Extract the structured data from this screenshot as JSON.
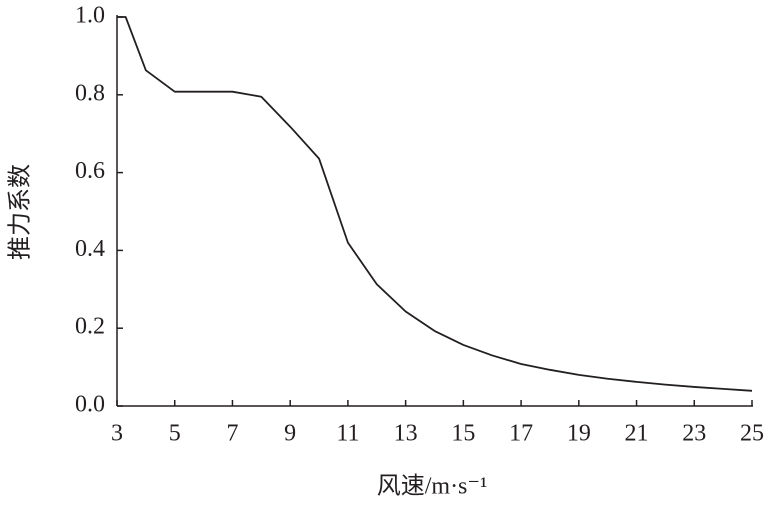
{
  "chart_data": {
    "type": "line",
    "x_label": "风速/m·s⁻¹",
    "y_label": "推力系数",
    "x": [
      3,
      3.3,
      4,
      5,
      7,
      8,
      9,
      10,
      11,
      12,
      13,
      14,
      15,
      16,
      17,
      18,
      19,
      20,
      21,
      22,
      23,
      24,
      25
    ],
    "series": [
      {
        "color": "#231f20",
        "values": [
          1.0,
          1.0,
          0.863,
          0.808,
          0.808,
          0.795,
          0.718,
          0.636,
          0.42,
          0.313,
          0.243,
          0.193,
          0.157,
          0.13,
          0.108,
          0.093,
          0.08,
          0.07,
          0.062,
          0.055,
          0.049,
          0.044,
          0.039
        ]
      }
    ],
    "xlim": [
      3,
      25
    ],
    "xticks": [
      3,
      5,
      7,
      9,
      11,
      13,
      15,
      17,
      19,
      21,
      23,
      25
    ],
    "ylim": [
      0,
      1
    ],
    "yticks": [
      {
        "value": 0,
        "label": "0.0"
      },
      0.2,
      0.4,
      0.6,
      0.8,
      {
        "value": 1,
        "label": "1.0"
      }
    ],
    "grid": false
  }
}
